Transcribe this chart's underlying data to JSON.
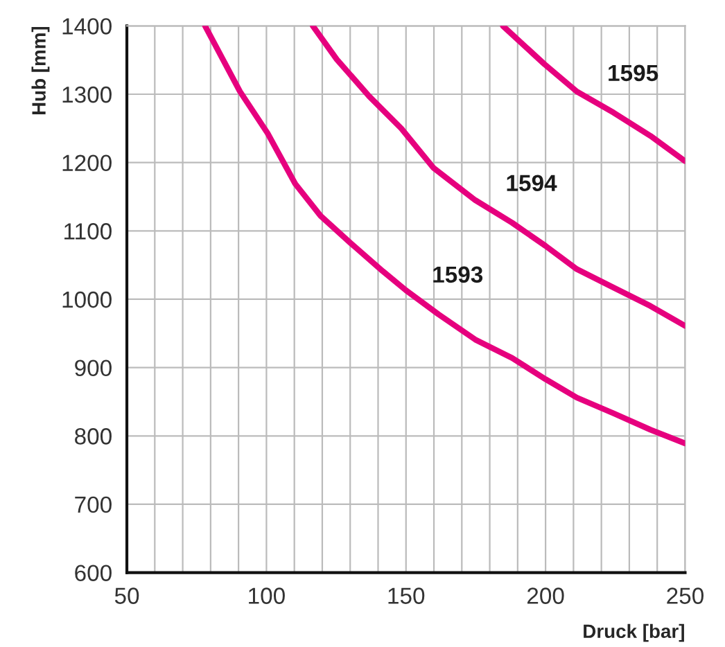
{
  "chart_data": {
    "type": "line",
    "xlabel": "Druck [bar]",
    "ylabel": "Hub [mm]",
    "xlim": [
      50,
      250
    ],
    "ylim": [
      600,
      1400
    ],
    "xticks": [
      50,
      {
        "value": 60,
        "label": null
      },
      {
        "value": 70,
        "label": null
      },
      {
        "value": 80,
        "label": null
      },
      {
        "value": 90,
        "label": null
      },
      100,
      {
        "value": 110,
        "label": null
      },
      {
        "value": 120,
        "label": null
      },
      {
        "value": 130,
        "label": null
      },
      {
        "value": 140,
        "label": null
      },
      150,
      {
        "value": 160,
        "label": null
      },
      {
        "value": 170,
        "label": null
      },
      {
        "value": 180,
        "label": null
      },
      {
        "value": 190,
        "label": null
      },
      200,
      {
        "value": 210,
        "label": null
      },
      {
        "value": 220,
        "label": null
      },
      {
        "value": 230,
        "label": null
      },
      {
        "value": 240,
        "label": null
      },
      250
    ],
    "yticks": [
      600,
      700,
      800,
      900,
      1000,
      1100,
      1200,
      1300,
      1400
    ],
    "grid": true,
    "legend": false,
    "marker": "none",
    "line_style": "solid",
    "series": [
      {
        "name": "1593",
        "color": "#e6007e",
        "x": [
          78,
          90.5,
          100.4,
          110.3,
          119.4,
          130.2,
          141.7,
          150,
          161.6,
          174.8,
          188,
          200,
          211.2,
          224.4,
          237.6,
          250
        ],
        "values": [
          1400,
          1304,
          1243,
          1169,
          1122,
          1082,
          1041,
          1013,
          978,
          941,
          914,
          883,
          856,
          833,
          809,
          789
        ]
      },
      {
        "name": "1594",
        "color": "#e6007e",
        "x": [
          116.6,
          125.2,
          136.8,
          148.3,
          159.9,
          174.8,
          188,
          200,
          211.2,
          224.4,
          237.6,
          250
        ],
        "values": [
          1400,
          1351,
          1297,
          1250,
          1192,
          1145,
          1112,
          1078,
          1044,
          1017,
          990,
          961
        ]
      },
      {
        "name": "1595",
        "color": "#e6007e",
        "x": [
          184.7,
          199.6,
          211.2,
          224.4,
          237.6,
          250
        ],
        "values": [
          1400,
          1344,
          1304,
          1273,
          1239,
          1202
        ]
      }
    ]
  }
}
